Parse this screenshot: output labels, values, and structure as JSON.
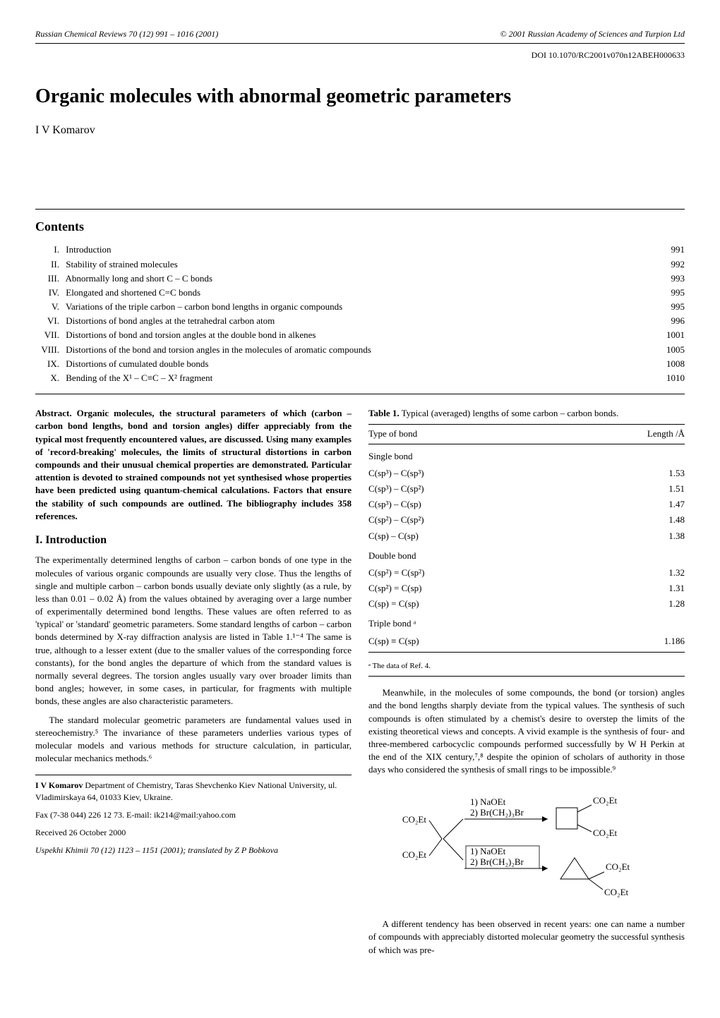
{
  "header": {
    "journal": "Russian Chemical Reviews 70 (12) 991 – 1016 (2001)",
    "copyright": "© 2001 Russian Academy of Sciences and Turpion Ltd",
    "doi": "DOI 10.1070/RC2001v070n12ABEH000633"
  },
  "title": "Organic molecules with abnormal geometric parameters",
  "author": "I V Komarov",
  "contents_heading": "Contents",
  "contents": [
    {
      "num": "I.",
      "label": "Introduction",
      "page": "991"
    },
    {
      "num": "II.",
      "label": "Stability of strained molecules",
      "page": "992"
    },
    {
      "num": "III.",
      "label": "Abnormally long and short C – C bonds",
      "page": "993"
    },
    {
      "num": "IV.",
      "label": "Elongated and shortened C=C bonds",
      "page": "995"
    },
    {
      "num": "V.",
      "label": "Variations of the triple carbon – carbon bond lengths in organic compounds",
      "page": "995"
    },
    {
      "num": "VI.",
      "label": "Distortions of bond angles at the tetrahedral carbon atom",
      "page": "996"
    },
    {
      "num": "VII.",
      "label": "Distortions of bond and torsion angles at the double bond in alkenes",
      "page": "1001"
    },
    {
      "num": "VIII.",
      "label": "Distortions of the bond and torsion angles in the molecules of aromatic compounds",
      "page": "1005"
    },
    {
      "num": "IX.",
      "label": "Distortions of cumulated double bonds",
      "page": "1008"
    },
    {
      "num": "X.",
      "label": "Bending of the X¹ – C≡C – X² fragment",
      "page": "1010"
    }
  ],
  "abstract": "Abstract. Organic molecules, the structural parameters of which (carbon – carbon bond lengths, bond and torsion angles) differ appreciably from the typical most frequently encountered values, are discussed. Using many examples of 'record-breaking' molecules, the limits of structural distortions in carbon compounds and their unusual chemical properties are demonstrated. Particular attention is devoted to strained compounds not yet synthesised whose properties have been predicted using quantum-chemical calculations. Factors that ensure the stability of such compounds are outlined. The bibliography includes 358 references.",
  "section1_heading": "I. Introduction",
  "intro_p1": "The experimentally determined lengths of carbon – carbon bonds of one type in the molecules of various organic compounds are usually very close. Thus the lengths of single and multiple carbon – carbon bonds usually deviate only slightly (as a rule, by less than 0.01 – 0.02 Å) from the values obtained by averaging over a large number of experimentally determined bond lengths. These values are often referred to as 'typical' or 'standard' geometric parameters. Some standard lengths of carbon – carbon bonds determined by X-ray diffraction analysis are listed in Table 1.¹⁻⁴ The same is true, although to a lesser extent (due to the smaller values of the corresponding force constants), for the bond angles the departure of which from the standard values is normally several degrees. The torsion angles usually vary over broader limits than bond angles; however, in some cases, in particular, for fragments with multiple bonds, these angles are also characteristic parameters.",
  "intro_p2": "The standard molecular geometric parameters are fundamental values used in stereochemistry.⁵ The invariance of these parameters underlies various types of molecular models and various methods for structure calculation, in particular, molecular mechanics methods.⁶",
  "affiliation": {
    "name": "I V Komarov",
    "dept": " Department of Chemistry, Taras Shevchenko Kiev National University, ul. Vladimirskaya 64, 01033 Kiev, Ukraine.",
    "fax": "Fax (7-38 044) 226 12 73. E-mail: ik214@mail:yahoo.com",
    "received": "Received 26 October 2000",
    "uspekhi": "Uspekhi Khimii 70 (12) 1123 – 1151 (2001); translated by Z P Bobkova"
  },
  "table1": {
    "caption_bold": "Table 1.",
    "caption_rest": " Typical (averaged) lengths of some carbon – carbon bonds.",
    "col1": "Type of bond",
    "col2": "Length /Å",
    "sections": [
      {
        "heading": "Single bond",
        "rows": [
          {
            "bond": "C(sp³) – C(sp³)",
            "len": "1.53"
          },
          {
            "bond": "C(sp³) – C(sp²)",
            "len": "1.51"
          },
          {
            "bond": "C(sp³) – C(sp)",
            "len": "1.47"
          },
          {
            "bond": "C(sp²) – C(sp²)",
            "len": "1.48"
          },
          {
            "bond": "C(sp) – C(sp)",
            "len": "1.38"
          }
        ]
      },
      {
        "heading": "Double bond",
        "rows": [
          {
            "bond": "C(sp²) = C(sp²)",
            "len": "1.32"
          },
          {
            "bond": "C(sp²) = C(sp)",
            "len": "1.31"
          },
          {
            "bond": "C(sp) = C(sp)",
            "len": "1.28"
          }
        ]
      },
      {
        "heading": "Triple bond ᵃ",
        "rows": [
          {
            "bond": "C(sp) ≡ C(sp)",
            "len": "1.186"
          }
        ]
      }
    ],
    "footnote": "ᵃ The data of Ref. 4."
  },
  "right_p1": "Meanwhile, in the molecules of some compounds, the bond (or torsion) angles and the bond lengths sharply deviate from the typical values. The synthesis of such compounds is often stimulated by a chemist's desire to overstep the limits of the existing theoretical views and concepts. A vivid example is the synthesis of four- and three-membered carbocyclic compounds performed successfully by W H Perkin at the end of the XIX century,⁷,⁸ despite the opinion of scholars of authority in those days who considered the synthesis of small rings to be impossible.⁹",
  "scheme": {
    "reagent_left_top": "CO₂Et",
    "reagent_left_bottom": "CO₂Et",
    "cond1a": "1) NaOEt",
    "cond1b": "2) Br(CH₂)₃Br",
    "cond2a": "1) NaOEt",
    "cond2b": "2) Br(CH₂)₂Br",
    "prod1_a": "CO₂Et",
    "prod1_b": "CO₂Et",
    "prod2_a": "CO₂Et",
    "prod2_b": "CO₂Et"
  },
  "right_p2": "A different tendency has been observed in recent years: one can name a number of compounds with appreciably distorted molecular geometry the successful synthesis of which was pre-"
}
